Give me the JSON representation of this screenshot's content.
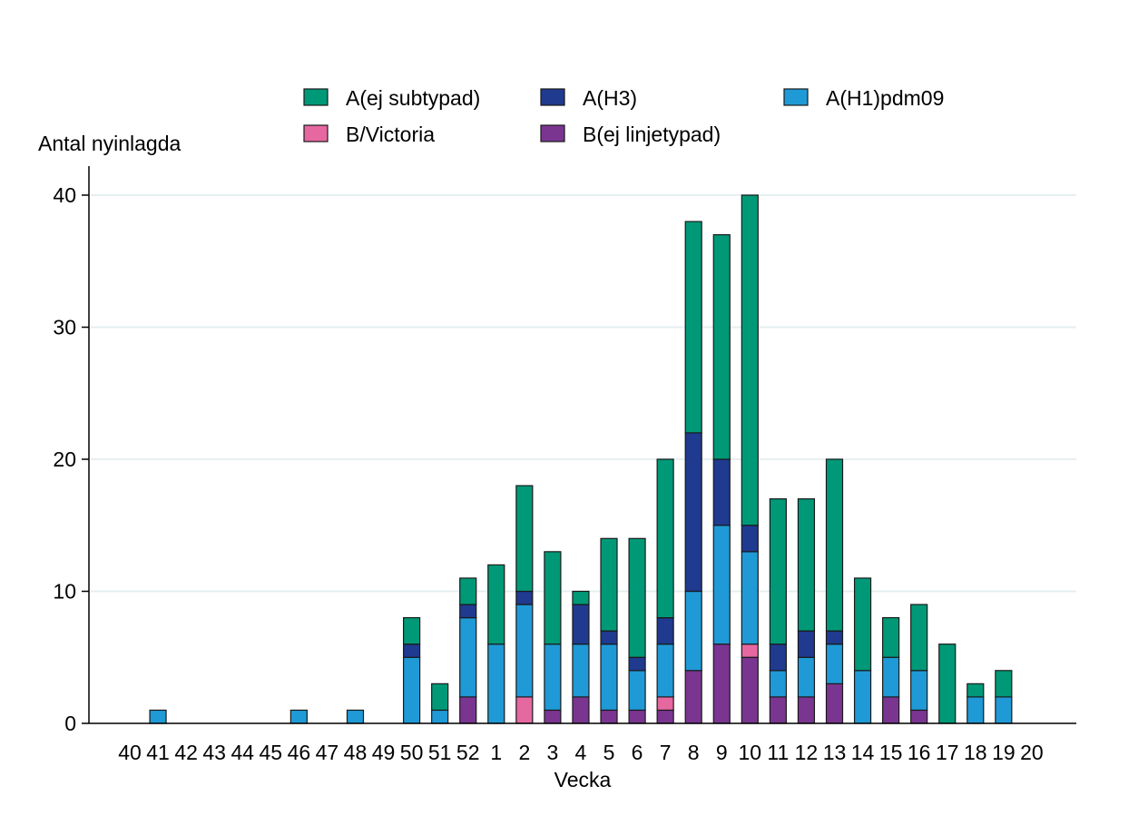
{
  "chart_data": {
    "type": "bar",
    "stacked": true,
    "title": "",
    "xlabel": "Vecka",
    "ylabel": "Antal nyinlagda",
    "ylim": [
      0,
      40
    ],
    "yticks": [
      0,
      10,
      20,
      30,
      40
    ],
    "grid": true,
    "legend_position": "top",
    "categories": [
      "40",
      "41",
      "42",
      "43",
      "44",
      "45",
      "46",
      "47",
      "48",
      "49",
      "50",
      "51",
      "52",
      "1",
      "2",
      "3",
      "4",
      "5",
      "6",
      "7",
      "8",
      "9",
      "10",
      "11",
      "12",
      "13",
      "14",
      "15",
      "16",
      "17",
      "18",
      "19",
      "20"
    ],
    "series": [
      {
        "name": "B(ej linjetypad)",
        "color": "#7a3590",
        "values": [
          0,
          0,
          0,
          0,
          0,
          0,
          0,
          0,
          0,
          0,
          0,
          0,
          2,
          0,
          0,
          1,
          2,
          1,
          1,
          1,
          4,
          6,
          5,
          2,
          2,
          3,
          0,
          2,
          1,
          0,
          0,
          0,
          0
        ]
      },
      {
        "name": "B/Victoria",
        "color": "#e668a0",
        "values": [
          0,
          0,
          0,
          0,
          0,
          0,
          0,
          0,
          0,
          0,
          0,
          0,
          0,
          0,
          2,
          0,
          0,
          0,
          0,
          1,
          0,
          0,
          1,
          0,
          0,
          0,
          0,
          0,
          0,
          0,
          0,
          0,
          0
        ]
      },
      {
        "name": "A(H1)pdm09",
        "color": "#1f9ad6",
        "values": [
          0,
          1,
          0,
          0,
          0,
          0,
          1,
          0,
          1,
          0,
          5,
          1,
          6,
          6,
          7,
          5,
          4,
          5,
          3,
          4,
          6,
          9,
          7,
          2,
          3,
          3,
          4,
          3,
          3,
          0,
          2,
          2,
          0
        ]
      },
      {
        "name": "A(H3)",
        "color": "#1f3a8f",
        "values": [
          0,
          0,
          0,
          0,
          0,
          0,
          0,
          0,
          0,
          0,
          1,
          0,
          1,
          0,
          1,
          0,
          3,
          1,
          1,
          2,
          12,
          5,
          2,
          2,
          2,
          1,
          0,
          0,
          0,
          0,
          0,
          0,
          0
        ]
      },
      {
        "name": "A(ej subtypad)",
        "color": "#009977",
        "values": [
          0,
          0,
          0,
          0,
          0,
          0,
          0,
          0,
          0,
          0,
          2,
          2,
          2,
          6,
          8,
          7,
          1,
          7,
          9,
          12,
          16,
          17,
          25,
          11,
          10,
          13,
          7,
          3,
          5,
          6,
          1,
          2,
          0
        ]
      }
    ],
    "legend": [
      [
        "A(ej subtypad)",
        "A(H3)",
        "A(H1)pdm09"
      ],
      [
        "B/Victoria",
        "B(ej linjetypad)"
      ]
    ]
  }
}
